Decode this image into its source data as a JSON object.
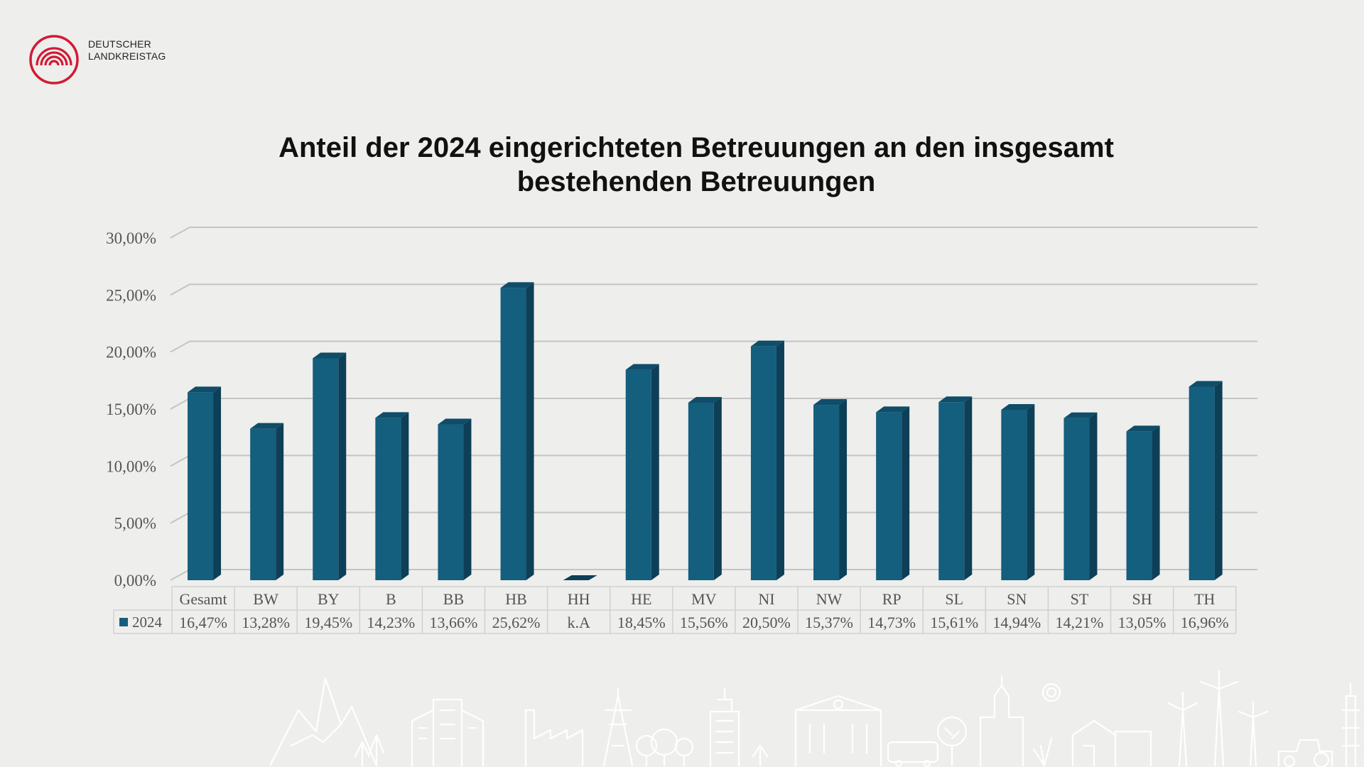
{
  "logo": {
    "line1": "DEUTSCHER",
    "line2": "LANDKREISTAG",
    "color": "#d11a35"
  },
  "chart_data": {
    "type": "bar",
    "title_line1": "Anteil der 2024 eingerichteten Betreuungen an den insgesamt",
    "title_line2": "bestehenden Betreuungen",
    "categories": [
      "Gesamt",
      "BW",
      "BY",
      "B",
      "BB",
      "HB",
      "HH",
      "HE",
      "MV",
      "NI",
      "NW",
      "RP",
      "SL",
      "SN",
      "ST",
      "SH",
      "TH"
    ],
    "series": [
      {
        "name": "2024",
        "values": [
          16.47,
          13.28,
          19.45,
          14.23,
          13.66,
          25.62,
          null,
          18.45,
          15.56,
          20.5,
          15.37,
          14.73,
          15.61,
          14.94,
          14.21,
          13.05,
          16.96
        ],
        "labels": [
          "16,47%",
          "13,28%",
          "19,45%",
          "14,23%",
          "13,66%",
          "25,62%",
          "k.A",
          "18,45%",
          "15,56%",
          "20,50%",
          "15,37%",
          "14,73%",
          "15,61%",
          "14,94%",
          "14,21%",
          "13,05%",
          "16,96%"
        ]
      }
    ],
    "yticks": [
      "0,00%",
      "5,00%",
      "10,00%",
      "15,00%",
      "20,00%",
      "25,00%",
      "30,00%"
    ],
    "ylim": [
      0,
      30
    ],
    "grid": true,
    "legend": "data-table",
    "colors": {
      "front": "#145e7e",
      "side": "#0d3f57",
      "top": "#0f4d69"
    }
  }
}
